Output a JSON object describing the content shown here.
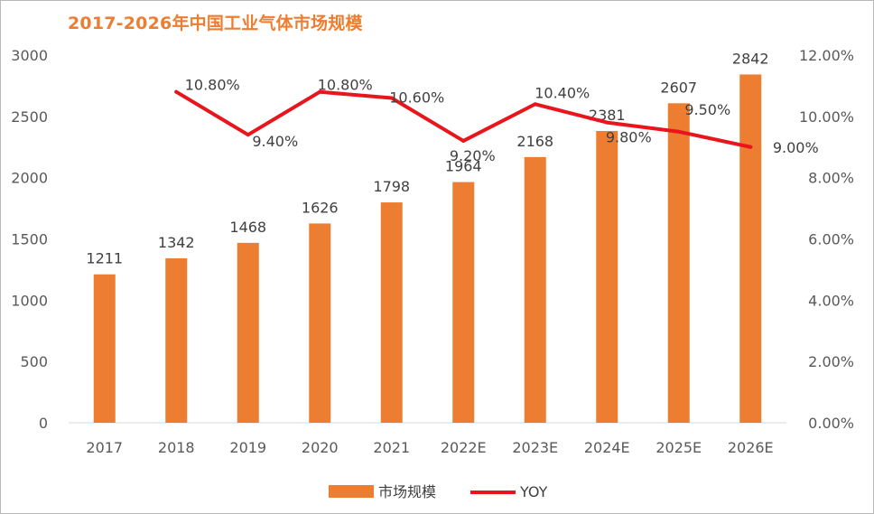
{
  "chart_data": {
    "type": "bar",
    "title": "2017-2026年中国工业气体市场规模",
    "categories": [
      "2017",
      "2018",
      "2019",
      "2020",
      "2021",
      "2022E",
      "2023E",
      "2024E",
      "2025E",
      "2026E"
    ],
    "series": [
      {
        "name": "市场规模",
        "type": "bar",
        "axis": "left",
        "color": "#ED7D31",
        "values": [
          1211,
          1342,
          1468,
          1626,
          1798,
          1964,
          2168,
          2381,
          2607,
          2842
        ],
        "labels": [
          "1211",
          "1342",
          "1468",
          "1626",
          "1798",
          "1964",
          "2168",
          "2381",
          "2607",
          "2842"
        ]
      },
      {
        "name": "YOY",
        "type": "line",
        "axis": "right",
        "color": "#E8161C",
        "values": [
          null,
          10.8,
          9.4,
          10.8,
          10.6,
          9.2,
          10.4,
          9.8,
          9.5,
          9.0
        ],
        "labels": [
          "",
          "10.80%",
          "9.40%",
          "10.80%",
          "10.60%",
          "9.20%",
          "10.40%",
          "9.80%",
          "9.50%",
          "9.00%"
        ]
      }
    ],
    "y_left": {
      "min": 0,
      "max": 3000,
      "ticks": [
        "0",
        "500",
        "1000",
        "1500",
        "2000",
        "2500",
        "3000"
      ]
    },
    "y_right": {
      "min": 0,
      "max": 12,
      "ticks": [
        "0.00%",
        "2.00%",
        "4.00%",
        "6.00%",
        "8.00%",
        "10.00%",
        "12.00%"
      ]
    },
    "grid": false,
    "legend": {
      "position": "bottom",
      "items": [
        "市场规模",
        "YOY"
      ]
    }
  }
}
